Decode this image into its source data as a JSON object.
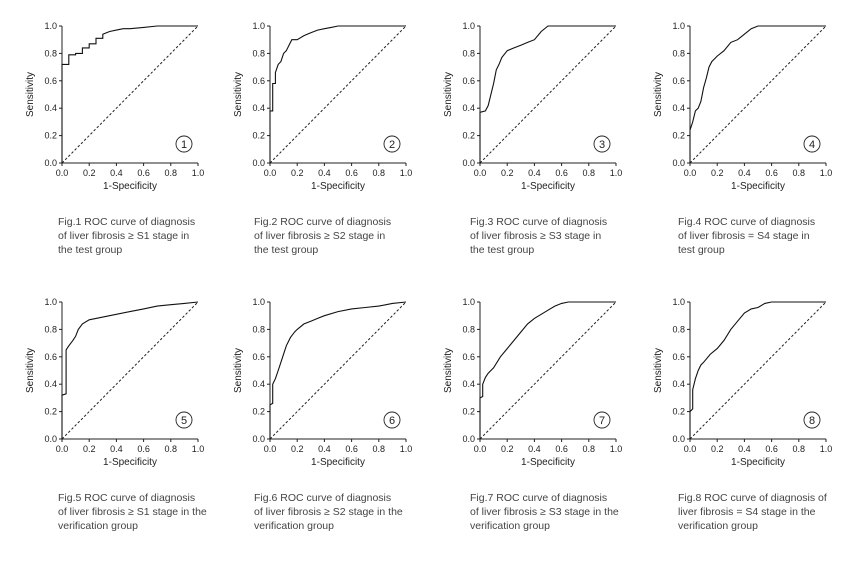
{
  "chart_data": [
    {
      "type": "line",
      "badge": "1",
      "xlabel": "1-Specificity",
      "ylabel": "Sensitivity",
      "xlim": [
        0,
        1
      ],
      "ylim": [
        0,
        1
      ],
      "xticks": [
        "0.0",
        "0.2",
        "0.4",
        "0.6",
        "0.8",
        "1.0"
      ],
      "yticks": [
        "0.0",
        "0.2",
        "0.4",
        "0.6",
        "0.8",
        "1.0"
      ],
      "caption": [
        "Fig.1 ROC curve of diagnosis",
        "of liver fibrosis ≥ S1 stage in",
        "the test group"
      ],
      "series": [
        {
          "x": [
            0,
            0,
            0.05,
            0.05,
            0.1,
            0.1,
            0.15,
            0.15,
            0.2,
            0.2,
            0.25,
            0.25,
            0.3,
            0.3,
            0.35,
            0.4,
            0.45,
            0.5,
            0.6,
            0.7,
            0.8,
            0.9,
            1.0
          ],
          "y": [
            0,
            0.72,
            0.72,
            0.79,
            0.79,
            0.8,
            0.8,
            0.84,
            0.84,
            0.87,
            0.87,
            0.91,
            0.91,
            0.94,
            0.96,
            0.97,
            0.98,
            0.98,
            0.99,
            1.0,
            1.0,
            1.0,
            1.0
          ]
        }
      ],
      "reference": true
    },
    {
      "type": "line",
      "badge": "2",
      "xlabel": "1-Specificity",
      "ylabel": "Sensitivity",
      "xlim": [
        0,
        1
      ],
      "ylim": [
        0,
        1
      ],
      "xticks": [
        "0.0",
        "0.2",
        "0.4",
        "0.6",
        "0.8",
        "1.0"
      ],
      "yticks": [
        "0.0",
        "0.2",
        "0.4",
        "0.6",
        "0.8",
        "1.0"
      ],
      "caption": [
        "Fig.2 ROC curve of diagnosis",
        "of liver fibrosis ≥ S2 stage in",
        "the test group"
      ],
      "series": [
        {
          "x": [
            0,
            0,
            0.02,
            0.02,
            0.04,
            0.04,
            0.06,
            0.08,
            0.1,
            0.12,
            0.14,
            0.16,
            0.2,
            0.25,
            0.3,
            0.35,
            0.4,
            0.45,
            0.5,
            0.6,
            0.7,
            0.8,
            0.9,
            1.0
          ],
          "y": [
            0,
            0.38,
            0.38,
            0.58,
            0.58,
            0.66,
            0.72,
            0.74,
            0.8,
            0.82,
            0.86,
            0.9,
            0.9,
            0.93,
            0.95,
            0.97,
            0.98,
            0.99,
            1.0,
            1.0,
            1.0,
            1.0,
            1.0,
            1.0
          ]
        }
      ],
      "reference": true
    },
    {
      "type": "line",
      "badge": "3",
      "xlabel": "1-Specificity",
      "ylabel": "Sensitivity",
      "xlim": [
        0,
        1
      ],
      "ylim": [
        0,
        1
      ],
      "xticks": [
        "0.0",
        "0.2",
        "0.4",
        "0.6",
        "0.8",
        "1.0"
      ],
      "yticks": [
        "0.0",
        "0.2",
        "0.4",
        "0.6",
        "0.8",
        "1.0"
      ],
      "caption": [
        "Fig.3 ROC curve of diagnosis",
        "of liver fibrosis ≥ S3 stage in",
        "the test group"
      ],
      "series": [
        {
          "x": [
            0,
            0,
            0.04,
            0.06,
            0.08,
            0.1,
            0.12,
            0.14,
            0.16,
            0.2,
            0.25,
            0.3,
            0.35,
            0.4,
            0.45,
            0.5,
            0.6,
            0.7,
            0.8,
            0.9,
            1.0
          ],
          "y": [
            0,
            0.37,
            0.38,
            0.42,
            0.5,
            0.58,
            0.68,
            0.72,
            0.77,
            0.82,
            0.84,
            0.86,
            0.88,
            0.9,
            0.96,
            1.0,
            1.0,
            1.0,
            1.0,
            1.0,
            1.0
          ]
        }
      ],
      "reference": true
    },
    {
      "type": "line",
      "badge": "4",
      "xlabel": "1-Specificity",
      "ylabel": "Sensitivity",
      "xlim": [
        0,
        1
      ],
      "ylim": [
        0,
        1
      ],
      "xticks": [
        "0.0",
        "0.2",
        "0.4",
        "0.6",
        "0.8",
        "1.0"
      ],
      "yticks": [
        "0.0",
        "0.2",
        "0.4",
        "0.6",
        "0.8",
        "1.0"
      ],
      "caption": [
        "Fig.4 ROC curve of diagnosis",
        "of liver fibrosis = S4 stage in",
        "test group"
      ],
      "series": [
        {
          "x": [
            0,
            0,
            0.02,
            0.04,
            0.06,
            0.08,
            0.1,
            0.12,
            0.14,
            0.16,
            0.18,
            0.2,
            0.25,
            0.3,
            0.35,
            0.4,
            0.45,
            0.5,
            0.6,
            0.7,
            0.8,
            0.9,
            1.0
          ],
          "y": [
            0,
            0.24,
            0.3,
            0.38,
            0.4,
            0.45,
            0.55,
            0.62,
            0.7,
            0.74,
            0.76,
            0.78,
            0.82,
            0.88,
            0.9,
            0.94,
            0.98,
            1.0,
            1.0,
            1.0,
            1.0,
            1.0,
            1.0
          ]
        }
      ],
      "reference": true
    },
    {
      "type": "line",
      "badge": "5",
      "xlabel": "1-Specificity",
      "ylabel": "Sensitivity",
      "xlim": [
        0,
        1
      ],
      "ylim": [
        0,
        1
      ],
      "xticks": [
        "0.0",
        "0.2",
        "0.4",
        "0.6",
        "0.8",
        "1.0"
      ],
      "yticks": [
        "0.0",
        "0.2",
        "0.4",
        "0.6",
        "0.8",
        "1.0"
      ],
      "caption": [
        "Fig.5 ROC curve of diagnosis",
        "of liver fibrosis ≥ S1 stage in the",
        "verification group"
      ],
      "series": [
        {
          "x": [
            0,
            0,
            0.03,
            0.03,
            0.05,
            0.08,
            0.1,
            0.12,
            0.15,
            0.2,
            0.25,
            0.3,
            0.35,
            0.4,
            0.5,
            0.6,
            0.7,
            0.8,
            0.9,
            1.0
          ],
          "y": [
            0,
            0.32,
            0.33,
            0.65,
            0.68,
            0.72,
            0.75,
            0.8,
            0.84,
            0.87,
            0.88,
            0.89,
            0.9,
            0.91,
            0.93,
            0.95,
            0.97,
            0.98,
            0.99,
            1.0
          ]
        }
      ],
      "reference": true
    },
    {
      "type": "line",
      "badge": "6",
      "xlabel": "1-Specificity",
      "ylabel": "Sensitivity",
      "xlim": [
        0,
        1
      ],
      "ylim": [
        0,
        1
      ],
      "xticks": [
        "0.0",
        "0.2",
        "0.4",
        "0.6",
        "0.8",
        "1.0"
      ],
      "yticks": [
        "0.0",
        "0.2",
        "0.4",
        "0.6",
        "0.8",
        "1.0"
      ],
      "caption": [
        "Fig.6 ROC curve of diagnosis",
        "of liver fibrosis ≥ S2 stage in the",
        "verification group"
      ],
      "series": [
        {
          "x": [
            0,
            0,
            0.02,
            0.02,
            0.04,
            0.06,
            0.08,
            0.1,
            0.12,
            0.15,
            0.18,
            0.2,
            0.25,
            0.3,
            0.35,
            0.4,
            0.5,
            0.6,
            0.7,
            0.8,
            0.9,
            1.0
          ],
          "y": [
            0,
            0.25,
            0.26,
            0.4,
            0.44,
            0.5,
            0.56,
            0.62,
            0.68,
            0.74,
            0.78,
            0.8,
            0.84,
            0.86,
            0.88,
            0.9,
            0.93,
            0.95,
            0.96,
            0.97,
            0.99,
            1.0
          ]
        }
      ],
      "reference": true
    },
    {
      "type": "line",
      "badge": "7",
      "xlabel": "1-Specificity",
      "ylabel": "Sensitivity",
      "xlim": [
        0,
        1
      ],
      "ylim": [
        0,
        1
      ],
      "xticks": [
        "0.0",
        "0.2",
        "0.4",
        "0.6",
        "0.8",
        "1.0"
      ],
      "yticks": [
        "0.0",
        "0.2",
        "0.4",
        "0.6",
        "0.8",
        "1.0"
      ],
      "caption": [
        "Fig.7 ROC curve of diagnosis",
        "of liver fibrosis ≥ S3 stage in the",
        "verification group"
      ],
      "series": [
        {
          "x": [
            0,
            0,
            0.02,
            0.02,
            0.04,
            0.06,
            0.08,
            0.1,
            0.15,
            0.2,
            0.25,
            0.3,
            0.35,
            0.4,
            0.45,
            0.5,
            0.55,
            0.6,
            0.65,
            0.7,
            0.8,
            0.9,
            1.0
          ],
          "y": [
            0,
            0.3,
            0.31,
            0.4,
            0.45,
            0.48,
            0.5,
            0.52,
            0.6,
            0.66,
            0.72,
            0.78,
            0.84,
            0.88,
            0.91,
            0.94,
            0.97,
            0.99,
            1.0,
            1.0,
            1.0,
            1.0,
            1.0
          ]
        }
      ],
      "reference": true
    },
    {
      "type": "line",
      "badge": "8",
      "xlabel": "1-Specificity",
      "ylabel": "Sensitivity",
      "xlim": [
        0,
        1
      ],
      "ylim": [
        0,
        1
      ],
      "xticks": [
        "0.0",
        "0.2",
        "0.4",
        "0.6",
        "0.8",
        "1.0"
      ],
      "yticks": [
        "0.0",
        "0.2",
        "0.4",
        "0.6",
        "0.8",
        "1.0"
      ],
      "caption": [
        "Fig.8 ROC curve of diagnosis of",
        "liver fibrosis = S4 stage in the",
        "verification group"
      ],
      "series": [
        {
          "x": [
            0,
            0,
            0.02,
            0.02,
            0.04,
            0.06,
            0.08,
            0.1,
            0.15,
            0.2,
            0.25,
            0.3,
            0.35,
            0.4,
            0.45,
            0.5,
            0.55,
            0.6,
            0.7,
            0.8,
            0.9,
            1.0
          ],
          "y": [
            0,
            0.2,
            0.22,
            0.36,
            0.44,
            0.5,
            0.54,
            0.56,
            0.62,
            0.66,
            0.72,
            0.8,
            0.86,
            0.92,
            0.95,
            0.96,
            0.99,
            1.0,
            1.0,
            1.0,
            1.0,
            1.0
          ]
        }
      ],
      "reference": true
    }
  ]
}
